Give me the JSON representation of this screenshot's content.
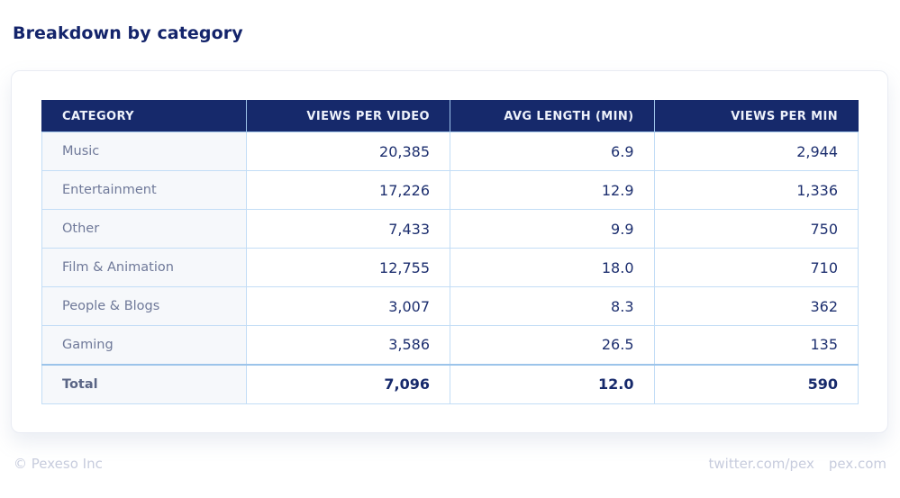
{
  "title": "Breakdown by category",
  "table": {
    "columns": [
      "CATEGORY",
      "VIEWS PER VIDEO",
      "AVG LENGTH (MIN)",
      "VIEWS PER MIN"
    ],
    "rows": [
      {
        "category": "Music",
        "views_per_video": "20,385",
        "avg_length": "6.9",
        "views_per_min": "2,944"
      },
      {
        "category": "Entertainment",
        "views_per_video": "17,226",
        "avg_length": "12.9",
        "views_per_min": "1,336"
      },
      {
        "category": "Other",
        "views_per_video": "7,433",
        "avg_length": "9.9",
        "views_per_min": "750"
      },
      {
        "category": "Film & Animation",
        "views_per_video": "12,755",
        "avg_length": "18.0",
        "views_per_min": "710"
      },
      {
        "category": "People & Blogs",
        "views_per_video": "3,007",
        "avg_length": "8.3",
        "views_per_min": "362"
      },
      {
        "category": "Gaming",
        "views_per_video": "3,586",
        "avg_length": "26.5",
        "views_per_min": "135"
      }
    ],
    "total": {
      "category": "Total",
      "views_per_video": "7,096",
      "avg_length": "12.0",
      "views_per_min": "590"
    }
  },
  "footer": {
    "copyright": "© Pexeso Inc",
    "link_twitter": "twitter.com/pex",
    "link_site": "pex.com"
  },
  "colors": {
    "header_bg": "#16296b",
    "header_text": "#eef2fb",
    "border_blue": "#c3ddf6",
    "category_bg": "#f6f8fb",
    "category_text": "#6f7999",
    "value_text": "#1d2f6f",
    "title_text": "#14246b",
    "footer_text": "#c7ccdd"
  },
  "chart_data": {
    "type": "table",
    "title": "Breakdown by category",
    "columns": [
      "CATEGORY",
      "VIEWS PER VIDEO",
      "AVG LENGTH (MIN)",
      "VIEWS PER MIN"
    ],
    "rows": [
      [
        "Music",
        20385,
        6.9,
        2944
      ],
      [
        "Entertainment",
        17226,
        12.9,
        1336
      ],
      [
        "Other",
        7433,
        9.9,
        750
      ],
      [
        "Film & Animation",
        12755,
        18.0,
        710
      ],
      [
        "People & Blogs",
        3007,
        8.3,
        362
      ],
      [
        "Gaming",
        3586,
        26.5,
        135
      ],
      [
        "Total",
        7096,
        12.0,
        590
      ]
    ]
  }
}
